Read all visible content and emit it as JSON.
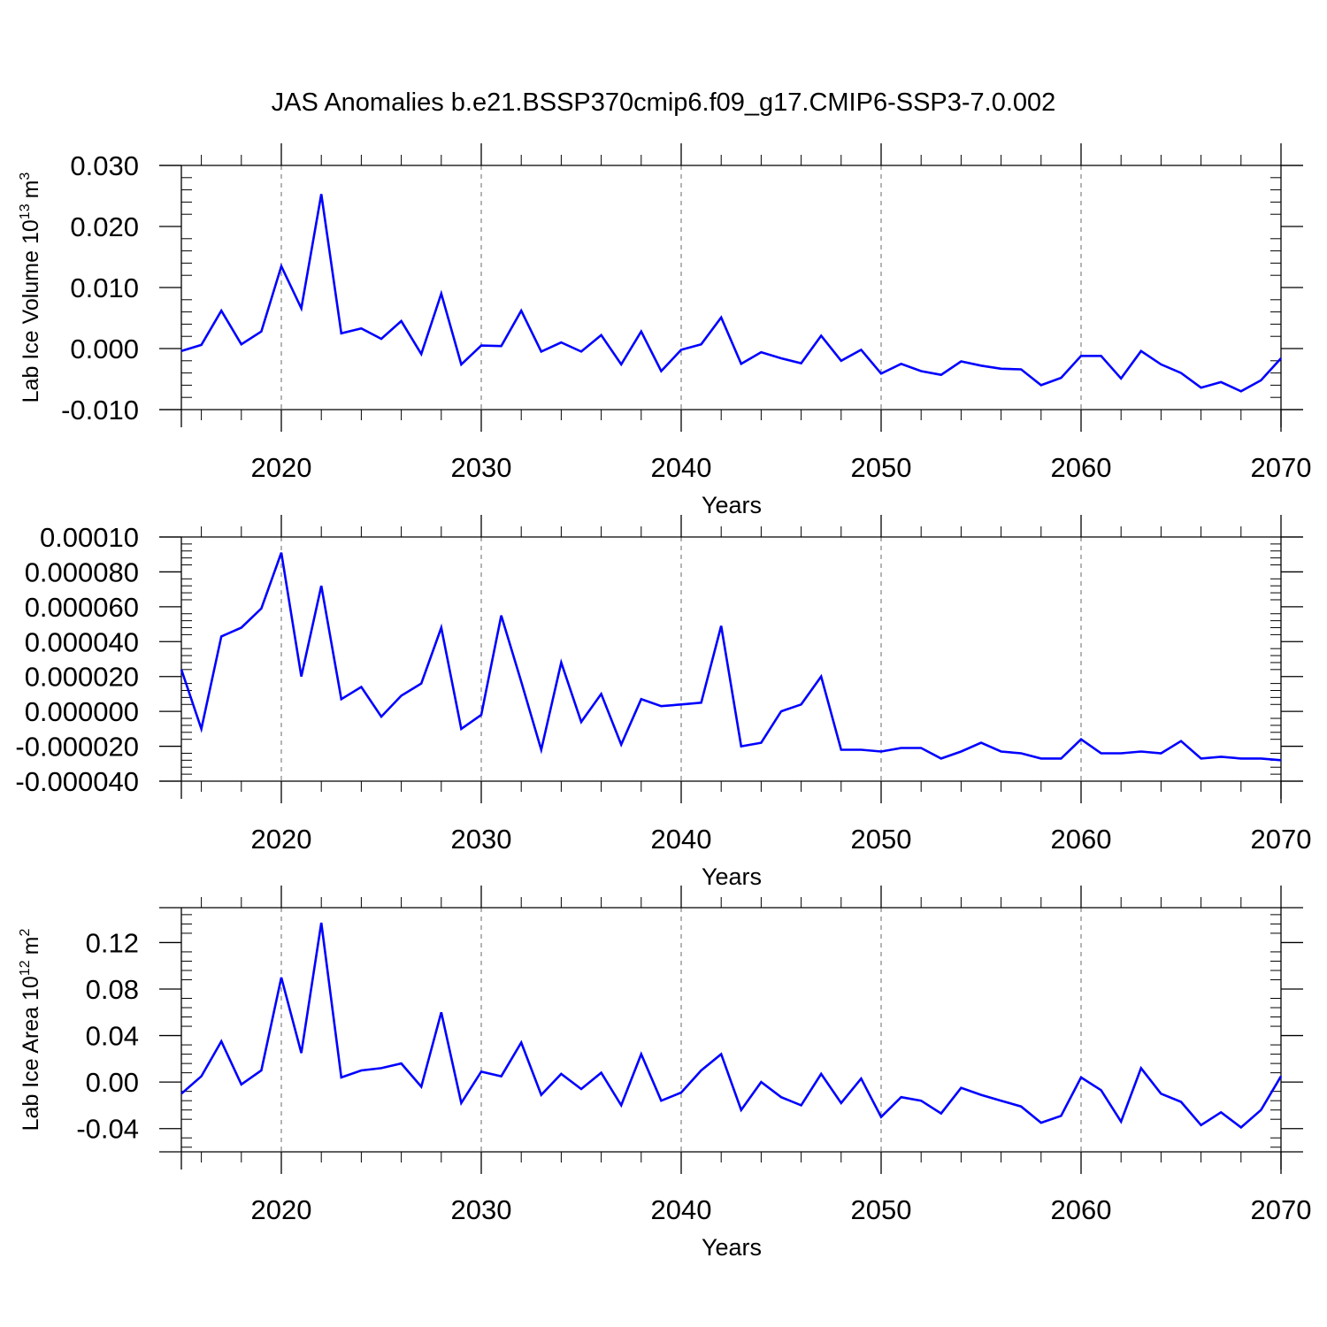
{
  "title": "JAS Anomalies b.e21.BSSP370cmip6.f09_g17.CMIP6-SSP3-7.0.002",
  "colors": {
    "line": "#0000ff",
    "grid": "#8c8c8c",
    "axis": "#000000"
  },
  "chart_data": [
    {
      "type": "line",
      "id": "volume",
      "ylabel": "Lab Ice Volume",
      "ylabel_unit_base": "10",
      "ylabel_unit_exp": "13",
      "ylabel_unit_tail": "m",
      "ylabel_unit_tail_exp": "3",
      "xlabel": "Years",
      "xlim": [
        2015,
        2070
      ],
      "ylim": [
        -0.01,
        0.03
      ],
      "yticks": [
        -0.01,
        0.0,
        0.01,
        0.02,
        0.03
      ],
      "ytick_labels": [
        "-0.010",
        "0.000",
        "0.010",
        "0.020",
        "0.030"
      ],
      "xticks": [
        2020,
        2030,
        2040,
        2050,
        2060,
        2070
      ],
      "xtick_labels": [
        "2020",
        "2030",
        "2040",
        "2050",
        "2060",
        "2070"
      ],
      "series": [
        {
          "name": "volume",
          "x": [
            2015,
            2016,
            2017,
            2018,
            2019,
            2020,
            2021,
            2022,
            2023,
            2024,
            2025,
            2026,
            2027,
            2028,
            2029,
            2030,
            2031,
            2032,
            2033,
            2034,
            2035,
            2036,
            2037,
            2038,
            2039,
            2040,
            2041,
            2042,
            2043,
            2044,
            2045,
            2046,
            2047,
            2048,
            2049,
            2050,
            2051,
            2052,
            2053,
            2054,
            2055,
            2056,
            2057,
            2058,
            2059,
            2060,
            2061,
            2062,
            2063,
            2064,
            2065,
            2066,
            2067,
            2068,
            2069,
            2070
          ],
          "values": [
            -0.0004,
            0.0006,
            0.0062,
            0.0007,
            0.0028,
            0.0135,
            0.0066,
            0.0253,
            0.0025,
            0.0033,
            0.0016,
            0.0045,
            -0.0009,
            0.009,
            -0.0026,
            0.0005,
            0.0004,
            0.0062,
            -0.0005,
            0.001,
            -0.0005,
            0.0022,
            -0.0026,
            0.0028,
            -0.0037,
            -0.0002,
            0.0007,
            0.0051,
            -0.0025,
            -0.0006,
            -0.0016,
            -0.0024,
            0.0021,
            -0.002,
            -0.0002,
            -0.0041,
            -0.0025,
            -0.0037,
            -0.0043,
            -0.0021,
            -0.0028,
            -0.0033,
            -0.0034,
            -0.006,
            -0.0048,
            -0.0012,
            -0.0012,
            -0.0049,
            -0.0004,
            -0.0026,
            -0.004,
            -0.0064,
            -0.0055,
            -0.007,
            -0.0052,
            -0.0016
          ]
        }
      ]
    },
    {
      "type": "line",
      "id": "middle",
      "ylabel": "",
      "xlabel": "Years",
      "xlim": [
        2015,
        2070
      ],
      "ylim": [
        -4e-05,
        0.0001
      ],
      "yticks": [
        -4e-05,
        -2e-05,
        0.0,
        2e-05,
        4e-05,
        6e-05,
        8e-05,
        0.0001
      ],
      "ytick_labels": [
        "-0.000040",
        "-0.000020",
        "0.000000",
        "0.000020",
        "0.000040",
        "0.000060",
        "0.000080",
        "0.00010"
      ],
      "xticks": [
        2020,
        2030,
        2040,
        2050,
        2060,
        2070
      ],
      "xtick_labels": [
        "2020",
        "2030",
        "2040",
        "2050",
        "2060",
        "2070"
      ],
      "series": [
        {
          "name": "middle",
          "x": [
            2015,
            2016,
            2017,
            2018,
            2019,
            2020,
            2021,
            2022,
            2023,
            2024,
            2025,
            2026,
            2027,
            2028,
            2029,
            2030,
            2031,
            2032,
            2033,
            2034,
            2035,
            2036,
            2037,
            2038,
            2039,
            2040,
            2041,
            2042,
            2043,
            2044,
            2045,
            2046,
            2047,
            2048,
            2049,
            2050,
            2051,
            2052,
            2053,
            2054,
            2055,
            2056,
            2057,
            2058,
            2059,
            2060,
            2061,
            2062,
            2063,
            2064,
            2065,
            2066,
            2067,
            2068,
            2069,
            2070
          ],
          "values": [
            2.4e-05,
            -1e-05,
            4.3e-05,
            4.8e-05,
            5.9e-05,
            9.1e-05,
            2e-05,
            7.2e-05,
            7e-06,
            1.4e-05,
            -3e-06,
            9e-06,
            1.6e-05,
            4.8e-05,
            -1e-05,
            -2e-06,
            5.5e-05,
            1.7e-05,
            -2.2e-05,
            2.8e-05,
            -6e-06,
            1e-05,
            -1.9e-05,
            7e-06,
            3e-06,
            4e-06,
            5e-06,
            4.9e-05,
            -2e-05,
            -1.8e-05,
            0.0,
            4e-06,
            2e-05,
            -2.2e-05,
            -2.2e-05,
            -2.3e-05,
            -2.1e-05,
            -2.1e-05,
            -2.7e-05,
            -2.3e-05,
            -1.8e-05,
            -2.3e-05,
            -2.4e-05,
            -2.7e-05,
            -2.7e-05,
            -1.6e-05,
            -2.4e-05,
            -2.4e-05,
            -2.3e-05,
            -2.4e-05,
            -1.7e-05,
            -2.7e-05,
            -2.6e-05,
            -2.7e-05,
            -2.7e-05,
            -2.8e-05
          ]
        }
      ]
    },
    {
      "type": "line",
      "id": "area",
      "ylabel": "Lab Ice Area",
      "ylabel_unit_base": "10",
      "ylabel_unit_exp": "12",
      "ylabel_unit_tail": "m",
      "ylabel_unit_tail_exp": "2",
      "xlabel": "Years",
      "xlim": [
        2015,
        2070
      ],
      "ylim": [
        -0.06,
        0.15
      ],
      "yticks": [
        -0.04,
        0.0,
        0.04,
        0.08,
        0.12
      ],
      "ytick_labels": [
        "-0.04",
        "0.00",
        "0.04",
        "0.08",
        "0.12"
      ],
      "xticks": [
        2020,
        2030,
        2040,
        2050,
        2060,
        2070
      ],
      "xtick_labels": [
        "2020",
        "2030",
        "2040",
        "2050",
        "2060",
        "2070"
      ],
      "series": [
        {
          "name": "area",
          "x": [
            2015,
            2016,
            2017,
            2018,
            2019,
            2020,
            2021,
            2022,
            2023,
            2024,
            2025,
            2026,
            2027,
            2028,
            2029,
            2030,
            2031,
            2032,
            2033,
            2034,
            2035,
            2036,
            2037,
            2038,
            2039,
            2040,
            2041,
            2042,
            2043,
            2044,
            2045,
            2046,
            2047,
            2048,
            2049,
            2050,
            2051,
            2052,
            2053,
            2054,
            2055,
            2056,
            2057,
            2058,
            2059,
            2060,
            2061,
            2062,
            2063,
            2064,
            2065,
            2066,
            2067,
            2068,
            2069,
            2070
          ],
          "values": [
            -0.01,
            0.005,
            0.035,
            -0.002,
            0.01,
            0.09,
            0.025,
            0.137,
            0.004,
            0.01,
            0.012,
            0.016,
            -0.004,
            0.06,
            -0.018,
            0.009,
            0.005,
            0.034,
            -0.011,
            0.007,
            -0.006,
            0.008,
            -0.02,
            0.024,
            -0.016,
            -0.009,
            0.01,
            0.024,
            -0.024,
            0.0,
            -0.013,
            -0.02,
            0.007,
            -0.018,
            0.003,
            -0.03,
            -0.013,
            -0.016,
            -0.027,
            -0.005,
            -0.011,
            -0.016,
            -0.021,
            -0.035,
            -0.029,
            0.004,
            -0.007,
            -0.034,
            0.012,
            -0.01,
            -0.017,
            -0.037,
            -0.026,
            -0.039,
            -0.024,
            0.005
          ]
        }
      ]
    }
  ]
}
